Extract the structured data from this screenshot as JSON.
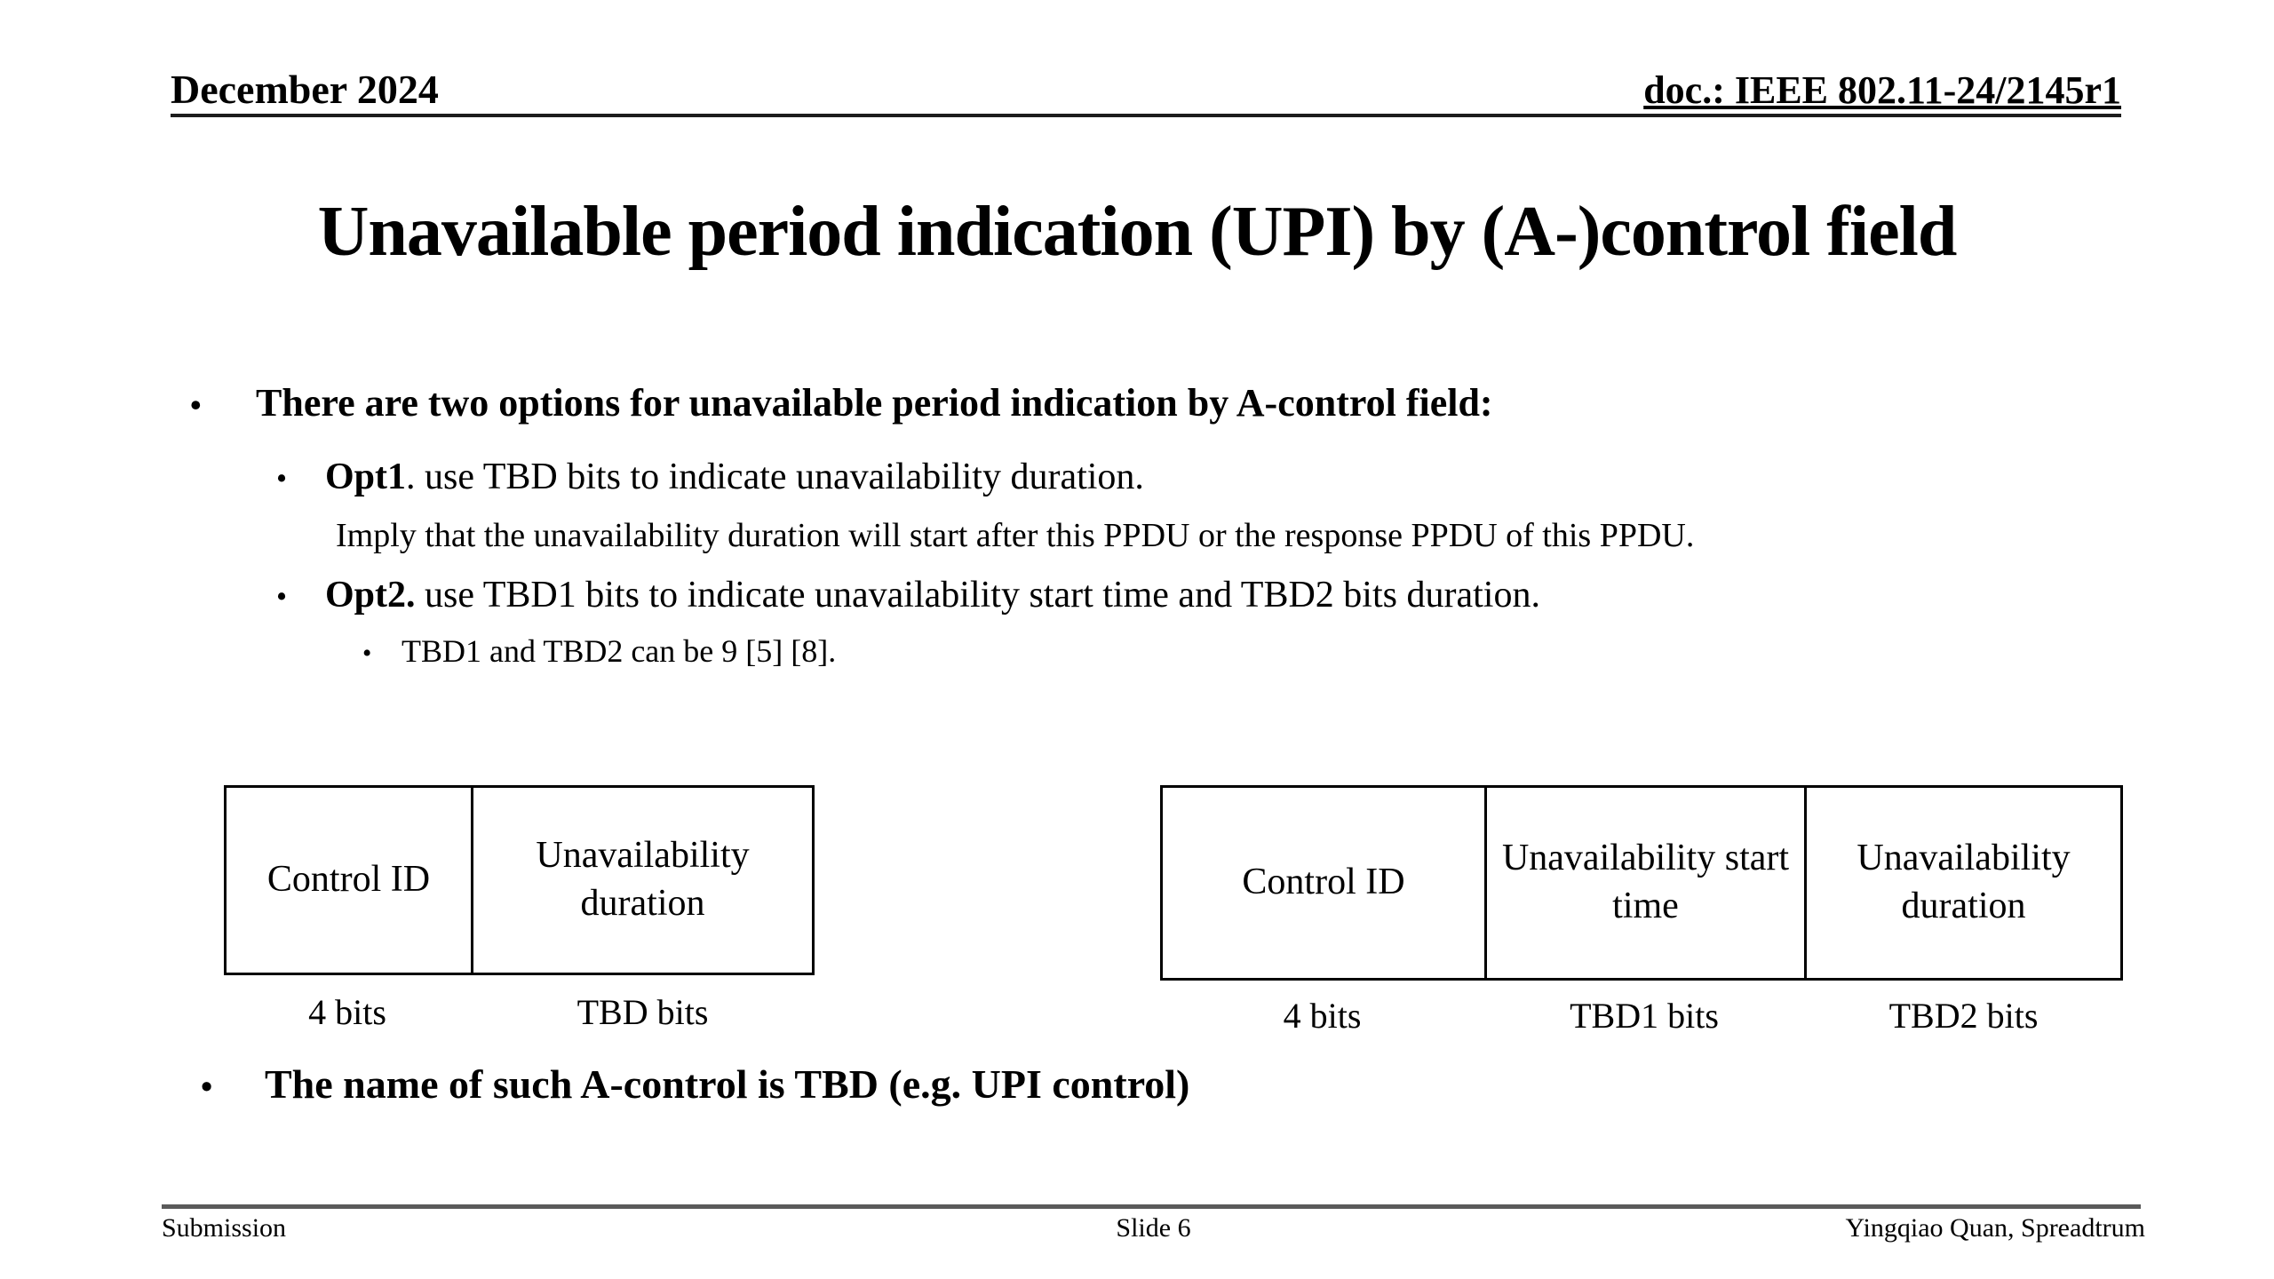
{
  "slide": {
    "header": {
      "date": "December 2024",
      "doc": "doc.: IEEE 802.11-24/2145r1"
    },
    "title": "Unavailable period indication (UPI) by (A-)control field",
    "bullet_marker": "•",
    "bullets": {
      "main": "There are two options for unavailable period indication by A-control field:",
      "opt1_label": "Opt1",
      "opt1_text": ". use TBD bits to indicate unavailability duration.",
      "opt1_note": "Imply that the unavailability duration will start after this PPDU or the response PPDU of this PPDU.",
      "opt2_label": "Opt2.",
      "opt2_text": " use TBD1 bits to indicate unavailability start time and TBD2 bits duration.",
      "opt2_sub": "TBD1 and TBD2 can be 9 [5] [8].",
      "closing": "The name of such A-control is TBD (e.g. UPI control)"
    },
    "opt1_table": {
      "fields": [
        {
          "name": "Control ID",
          "width": "4 bits"
        },
        {
          "name": "Unavailability duration",
          "width": "TBD bits"
        }
      ]
    },
    "opt2_table": {
      "fields": [
        {
          "name": "Control ID",
          "width": "4 bits"
        },
        {
          "name": "Unavailability start time",
          "width": "TBD1 bits"
        },
        {
          "name": "Unavailability duration",
          "width": "TBD2 bits"
        }
      ]
    },
    "footer": {
      "left": "Submission",
      "center": "Slide 6",
      "right": "Yingqiao Quan, Spreadtrum"
    }
  }
}
